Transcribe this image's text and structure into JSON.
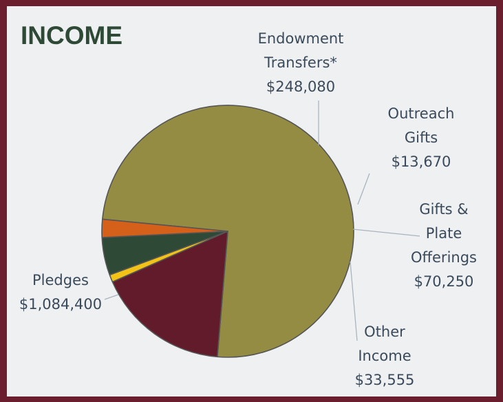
{
  "chart_data": {
    "type": "pie",
    "title": "INCOME",
    "slices": [
      {
        "name": "Pledges",
        "value_label": "$1,084,400",
        "value": 1084400,
        "color": "#958c43",
        "label_lines": [
          "Pledges",
          "$1,084,400"
        ]
      },
      {
        "name": "Endowment Transfers*",
        "value_label": "$248,080",
        "value": 248080,
        "color": "#621b2b",
        "label_lines": [
          "Endowment",
          "Transfers*",
          "$248,080"
        ]
      },
      {
        "name": "Outreach Gifts",
        "value_label": "$13,670",
        "value": 13670,
        "color": "#f2c316",
        "label_lines": [
          "Outreach",
          "Gifts",
          "$13,670"
        ]
      },
      {
        "name": "Gifts & Plate Offerings",
        "value_label": "$70,250",
        "value": 70250,
        "color": "#2e4a36",
        "label_lines": [
          "Gifts &",
          "Plate",
          "Offerings",
          "$70,250"
        ]
      },
      {
        "name": "Other Income",
        "value_label": "$33,555",
        "value": 33555,
        "color": "#d4601a",
        "label_lines": [
          "Other",
          "Income",
          "$33,555"
        ]
      }
    ],
    "colors": {
      "title": "#2e4a36",
      "label": "#3b4a5a",
      "frame": "#6b1f2e",
      "background": "#eef0f2",
      "slice_border": "#555555"
    }
  }
}
